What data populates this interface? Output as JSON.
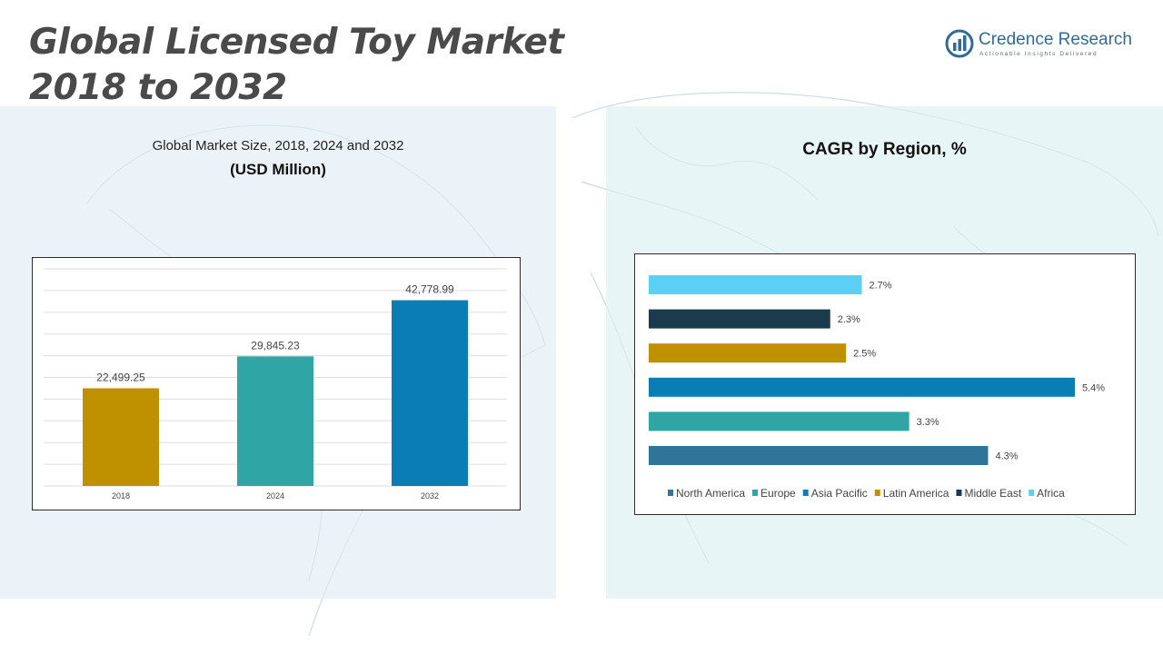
{
  "page": {
    "title_line1": "Global Licensed Toy Market",
    "title_line2": "2018 to 2032"
  },
  "logo": {
    "name": "Credence Research",
    "tagline": "Actionable Insights Delivered",
    "color": "#2e6b9a"
  },
  "chart_data": [
    {
      "type": "bar",
      "title": "Global Market Size, 2018, 2024 and 2032",
      "subtitle": "(USD Million)",
      "categories": [
        "2018",
        "2024",
        "2032"
      ],
      "values": [
        22499.25,
        29845.23,
        42778.99
      ],
      "labels": [
        "22,499.25",
        "29,845.23",
        "42,778.99"
      ],
      "colors": [
        "#bf9000",
        "#2fa5a5",
        "#0a7db4"
      ],
      "ylim": [
        0,
        50000
      ],
      "grid": true,
      "legend": "none"
    },
    {
      "type": "bar",
      "orientation": "horizontal",
      "title": "CAGR by Region, %",
      "categories": [
        "North America",
        "Europe",
        "Asia Pacific",
        "Latin America",
        "Middle East",
        "Africa"
      ],
      "values": [
        4.3,
        3.3,
        5.4,
        2.5,
        2.3,
        2.7
      ],
      "labels": [
        "4.3%",
        "3.3%",
        "5.4%",
        "2.5%",
        "2.3%",
        "2.7%"
      ],
      "colors": [
        "#2e7599",
        "#2fa5a5",
        "#0a7db4",
        "#bf9000",
        "#1b3a4b",
        "#5ccff4"
      ],
      "xlim": [
        0,
        5.4
      ],
      "grid": false,
      "legend": "bottom"
    }
  ]
}
